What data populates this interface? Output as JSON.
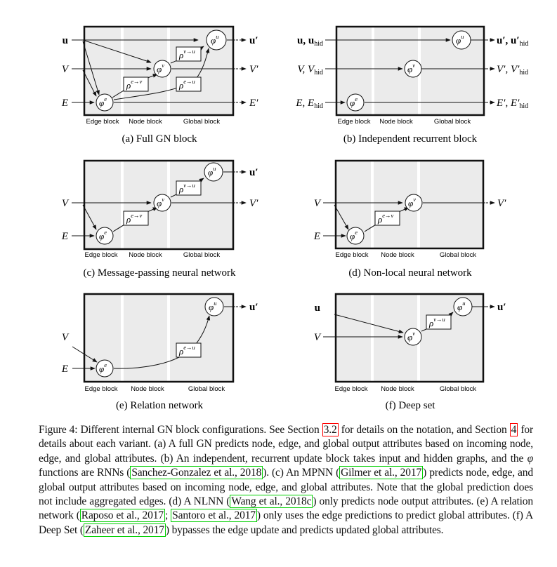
{
  "block_labels": {
    "edge": "Edge block",
    "node": "Node block",
    "global": "Global block"
  },
  "panels": [
    {
      "id": "a",
      "caption": "(a) Full GN block",
      "in_u": "u",
      "in_v": "V",
      "in_e": "E",
      "out_u": "u′",
      "out_v": "V′",
      "out_e": "E′"
    },
    {
      "id": "b",
      "caption": "(b) Independent recurrent block",
      "in_u": "u, u",
      "in_u_sub": "hid",
      "in_v": "V, V",
      "in_v_sub": "hid",
      "in_e": "E, E",
      "in_e_sub": "hid",
      "out_u": "u′, u′",
      "out_u_sub": "hid",
      "out_v": "V′, V′",
      "out_v_sub": "hid",
      "out_e": "E′, E′",
      "out_e_sub": "hid"
    },
    {
      "id": "c",
      "caption": "(c) Message-passing neural network",
      "in_v": "V",
      "in_e": "E",
      "out_u": "u′",
      "out_v": "V′"
    },
    {
      "id": "d",
      "caption": "(d) Non-local neural network",
      "in_v": "V",
      "in_e": "E",
      "out_v": "V′"
    },
    {
      "id": "e",
      "caption": "(e) Relation network",
      "in_v": "V",
      "in_e": "E",
      "out_u": "u′"
    },
    {
      "id": "f",
      "caption": "(f) Deep set",
      "in_u": "u",
      "in_v": "V",
      "out_u": "u′"
    }
  ],
  "nodes": {
    "phi_e": "φ",
    "phi_e_sup": "e",
    "phi_v": "φ",
    "phi_v_sup": "v",
    "phi_u": "φ",
    "phi_u_sup": "u",
    "rho_ev": "ρ",
    "rho_ev_sup": "e→v",
    "rho_eu": "ρ",
    "rho_eu_sup": "e→u",
    "rho_vu": "ρ",
    "rho_vu_sup": "v→u"
  },
  "caption": {
    "fig": "Figure 4:",
    "t1": " Different internal GN block configurations. See Section ",
    "ref_sec32": "3.2",
    "t2": " for details on the notation, and Section ",
    "ref_sec4": "4",
    "t3": " for details about each variant. (a) A full GN predicts node, edge, and global output attributes based on incoming node, edge, and global attributes. (b) An independent, recurrent update block takes input and hidden graphs, and the ",
    "phi": "φ",
    "t4": " functions are RNNs (",
    "cite_sg": "Sanchez-Gonzalez et al., 2018",
    "t5": "). (c) An MPNN (",
    "cite_gilmer": "Gilmer et al., 2017",
    "t6": ") predicts node, edge, and global output attributes based on incoming node, edge, and global attributes. Note that the global prediction does not include aggregated edges. (d) A NLNN (",
    "cite_wang": "Wang et al., 2018c",
    "t7": ") only predicts node output attributes. (e) A relation network (",
    "cite_raposo": "Raposo et al., 2017",
    "t8": "; ",
    "cite_santoro": "Santoro et al., 2017",
    "t9": ") only uses the edge predictions to predict global attributes. (f) A Deep Set (",
    "cite_zaheer": "Zaheer et al., 2017",
    "t10": ") bypasses the edge update and predicts updated global attributes."
  }
}
